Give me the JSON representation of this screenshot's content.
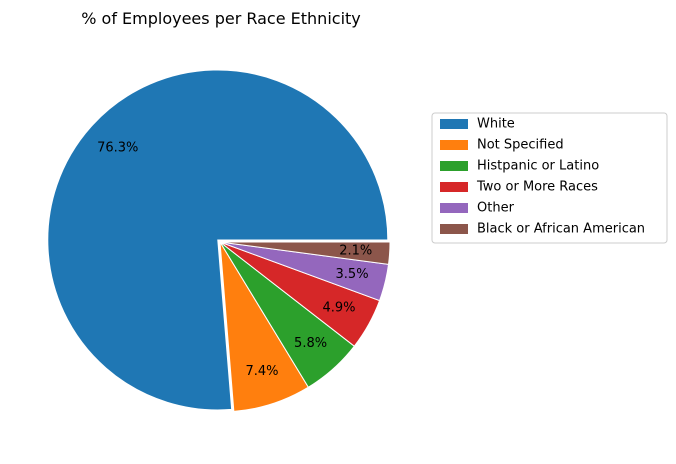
{
  "chart_data": {
    "type": "pie",
    "title": "% of Employees per Race Ethnicity",
    "slices": [
      {
        "label": "White",
        "value": 76.3,
        "display": "76.3%",
        "color": "#1f77b4"
      },
      {
        "label": "Not Specified",
        "value": 7.4,
        "display": "7.4%",
        "color": "#ff7f0e"
      },
      {
        "label": "Histpanic or Latino",
        "value": 5.8,
        "display": "5.8%",
        "color": "#2ca02c"
      },
      {
        "label": "Two or More Races",
        "value": 4.9,
        "display": "4.9%",
        "color": "#d62728"
      },
      {
        "label": "Other",
        "value": 3.5,
        "display": "3.5%",
        "color": "#9467bd"
      },
      {
        "label": "Black or African American",
        "value": 2.1,
        "display": "2.1%",
        "color": "#8c564b"
      }
    ],
    "legend_position": "right",
    "start_angle_deg": 0,
    "direction": "counterclockwise",
    "exploded_slice": "White"
  }
}
